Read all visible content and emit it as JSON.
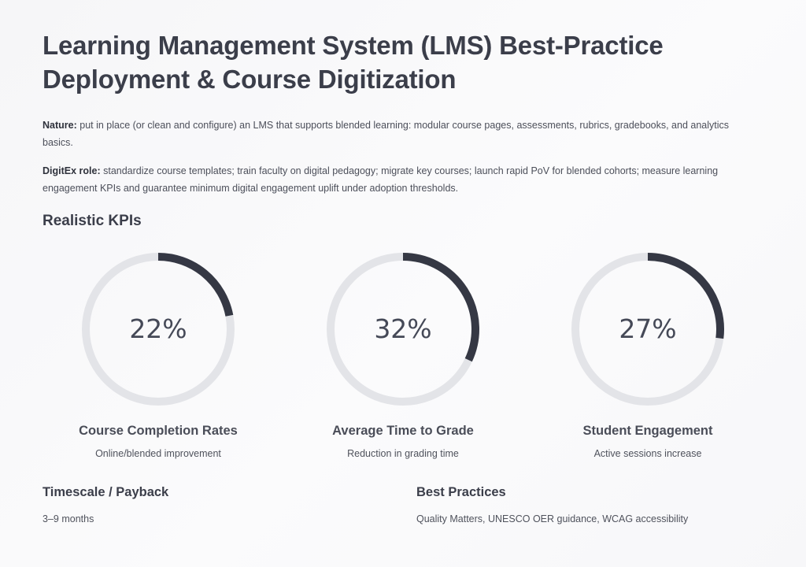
{
  "title_line1": "Learning Management System (LMS) Best-Practice",
  "title_line2": "Deployment & Course Digitization",
  "nature": {
    "label": "Nature:",
    "text": " put in place (or clean and configure) an LMS that supports blended learning: modular course pages, assessments, rubrics, gradebooks, and analytics basics."
  },
  "role": {
    "label": "DigitEx role:",
    "text": " standardize course templates; train faculty on digital pedagogy; migrate key courses; launch rapid PoV for blended cohorts; measure learning engagement KPIs and guarantee minimum digital engagement uplift under adoption thresholds."
  },
  "kpi_heading": "Realistic KPIs",
  "colors": {
    "track": "#e3e4e8",
    "fill": "#353844"
  },
  "kpis": [
    {
      "value_text": "22%",
      "percent": 22,
      "label": "Course Completion Rates",
      "sub": "Online/blended improvement"
    },
    {
      "value_text": "32%",
      "percent": 32,
      "label": "Average Time to Grade",
      "sub": "Reduction in grading time"
    },
    {
      "value_text": "27%",
      "percent": 27,
      "label": "Student Engagement",
      "sub": "Active sessions increase"
    }
  ],
  "timescale": {
    "heading": "Timescale / Payback",
    "text": "3–9 months"
  },
  "practices": {
    "heading": "Best Practices",
    "text": "Quality Matters, UNESCO OER guidance, WCAG accessibility"
  }
}
